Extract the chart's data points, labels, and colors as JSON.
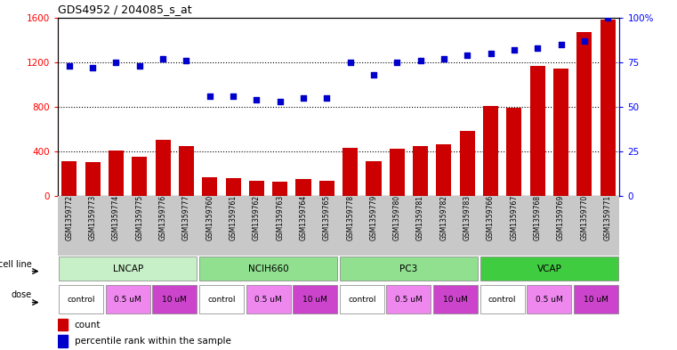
{
  "title": "GDS4952 / 204085_s_at",
  "samples": [
    "GSM1359772",
    "GSM1359773",
    "GSM1359774",
    "GSM1359775",
    "GSM1359776",
    "GSM1359777",
    "GSM1359760",
    "GSM1359761",
    "GSM1359762",
    "GSM1359763",
    "GSM1359764",
    "GSM1359765",
    "GSM1359778",
    "GSM1359779",
    "GSM1359780",
    "GSM1359781",
    "GSM1359782",
    "GSM1359783",
    "GSM1359766",
    "GSM1359767",
    "GSM1359768",
    "GSM1359769",
    "GSM1359770",
    "GSM1359771"
  ],
  "counts": [
    310,
    305,
    410,
    355,
    500,
    450,
    170,
    160,
    140,
    130,
    150,
    140,
    430,
    315,
    420,
    450,
    460,
    580,
    810,
    790,
    1170,
    1140,
    1470,
    1580
  ],
  "percentiles": [
    73,
    72,
    75,
    73,
    77,
    76,
    56,
    56,
    54,
    53,
    55,
    55,
    75,
    68,
    75,
    76,
    77,
    79,
    80,
    82,
    83,
    85,
    87,
    100
  ],
  "cell_lines": [
    {
      "label": "LNCAP",
      "start": 0,
      "end": 6,
      "color": "#c8f0c8"
    },
    {
      "label": "NCIH660",
      "start": 6,
      "end": 12,
      "color": "#90e090"
    },
    {
      "label": "PC3",
      "start": 12,
      "end": 18,
      "color": "#90e090"
    },
    {
      "label": "VCAP",
      "start": 18,
      "end": 24,
      "color": "#40cc40"
    }
  ],
  "doses": [
    {
      "label": "control",
      "start": 0,
      "end": 2,
      "color": "#ffffff"
    },
    {
      "label": "0.5 uM",
      "start": 2,
      "end": 4,
      "color": "#ee88ee"
    },
    {
      "label": "10 uM",
      "start": 4,
      "end": 6,
      "color": "#cc44cc"
    },
    {
      "label": "control",
      "start": 6,
      "end": 8,
      "color": "#ffffff"
    },
    {
      "label": "0.5 uM",
      "start": 8,
      "end": 10,
      "color": "#ee88ee"
    },
    {
      "label": "10 uM",
      "start": 10,
      "end": 12,
      "color": "#cc44cc"
    },
    {
      "label": "control",
      "start": 12,
      "end": 14,
      "color": "#ffffff"
    },
    {
      "label": "0.5 uM",
      "start": 14,
      "end": 16,
      "color": "#ee88ee"
    },
    {
      "label": "10 uM",
      "start": 16,
      "end": 18,
      "color": "#cc44cc"
    },
    {
      "label": "control",
      "start": 18,
      "end": 20,
      "color": "#ffffff"
    },
    {
      "label": "0.5 uM",
      "start": 20,
      "end": 22,
      "color": "#ee88ee"
    },
    {
      "label": "10 uM",
      "start": 22,
      "end": 24,
      "color": "#cc44cc"
    }
  ],
  "bar_color": "#cc0000",
  "dot_color": "#0000cc",
  "left_ylim": [
    0,
    1600
  ],
  "left_yticks": [
    0,
    400,
    800,
    1200,
    1600
  ],
  "right_ylim": [
    0,
    100
  ],
  "right_yticks": [
    0,
    25,
    50,
    75,
    100
  ],
  "grid_values": [
    400,
    800,
    1200
  ],
  "tick_bg_color": "#c8c8c8",
  "cell_line_label": "cell line",
  "dose_label": "dose",
  "legend_count": "count",
  "legend_percentile": "percentile rank within the sample"
}
